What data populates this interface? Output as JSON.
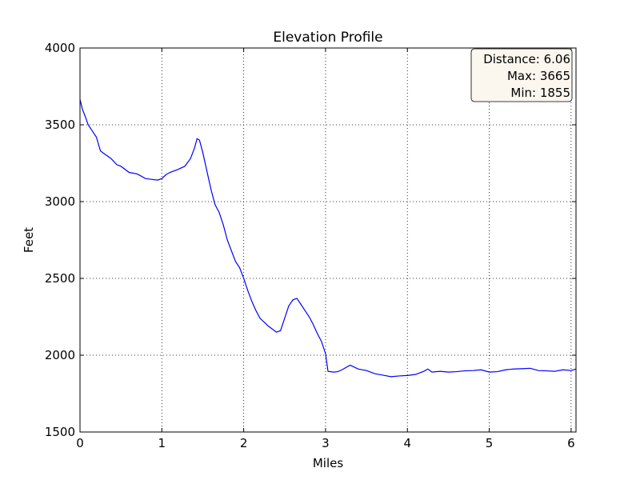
{
  "chart_data": {
    "type": "line",
    "title": "Elevation Profile",
    "xlabel": "Miles",
    "ylabel": "Feet",
    "xlim": [
      0,
      6.06
    ],
    "ylim": [
      1500,
      4000
    ],
    "x_ticks": [
      "0",
      "1",
      "2",
      "3",
      "4",
      "5",
      "6"
    ],
    "y_ticks": [
      "1500",
      "2000",
      "2500",
      "3000",
      "3500",
      "4000"
    ],
    "grid": true,
    "line_color": "#0000ff",
    "series": [
      {
        "x": [
          0,
          0.03,
          0.06,
          0.1,
          0.15,
          0.2,
          0.25,
          0.3,
          0.38,
          0.45,
          0.5,
          0.6,
          0.7,
          0.8,
          0.87,
          0.95,
          1.0,
          1.05,
          1.1,
          1.2,
          1.28,
          1.35,
          1.4,
          1.43,
          1.46,
          1.5,
          1.55,
          1.6,
          1.65,
          1.7,
          1.75,
          1.8,
          1.85,
          1.9,
          1.95,
          2.0,
          2.05,
          2.1,
          2.15,
          2.2,
          2.3,
          2.4,
          2.45,
          2.5,
          2.55,
          2.6,
          2.65,
          2.7,
          2.75,
          2.8,
          2.85,
          2.9,
          2.95,
          3.0,
          3.03,
          3.1,
          3.15,
          3.2,
          3.3,
          3.4,
          3.5,
          3.6,
          3.7,
          3.8,
          3.9,
          4.0,
          4.1,
          4.2,
          4.25,
          4.3,
          4.4,
          4.5,
          4.6,
          4.7,
          4.8,
          4.9,
          5.0,
          5.1,
          5.2,
          5.3,
          5.4,
          5.5,
          5.6,
          5.7,
          5.8,
          5.9,
          6.0,
          6.06
        ],
        "values": [
          3665,
          3600,
          3560,
          3500,
          3460,
          3420,
          3330,
          3310,
          3280,
          3240,
          3230,
          3190,
          3180,
          3150,
          3145,
          3140,
          3150,
          3175,
          3190,
          3210,
          3230,
          3280,
          3350,
          3410,
          3400,
          3320,
          3200,
          3080,
          2980,
          2930,
          2850,
          2750,
          2680,
          2610,
          2570,
          2500,
          2420,
          2350,
          2290,
          2240,
          2190,
          2150,
          2160,
          2240,
          2320,
          2360,
          2370,
          2330,
          2290,
          2250,
          2200,
          2140,
          2090,
          2010,
          1895,
          1890,
          1893,
          1905,
          1935,
          1910,
          1900,
          1880,
          1870,
          1860,
          1865,
          1868,
          1875,
          1895,
          1910,
          1890,
          1895,
          1890,
          1893,
          1898,
          1900,
          1905,
          1890,
          1893,
          1905,
          1910,
          1912,
          1915,
          1900,
          1898,
          1895,
          1905,
          1900,
          1910
        ]
      }
    ]
  },
  "info_box": {
    "distance": "Distance: 6.06",
    "max": "Max: 3665",
    "min": "Min: 1855"
  }
}
